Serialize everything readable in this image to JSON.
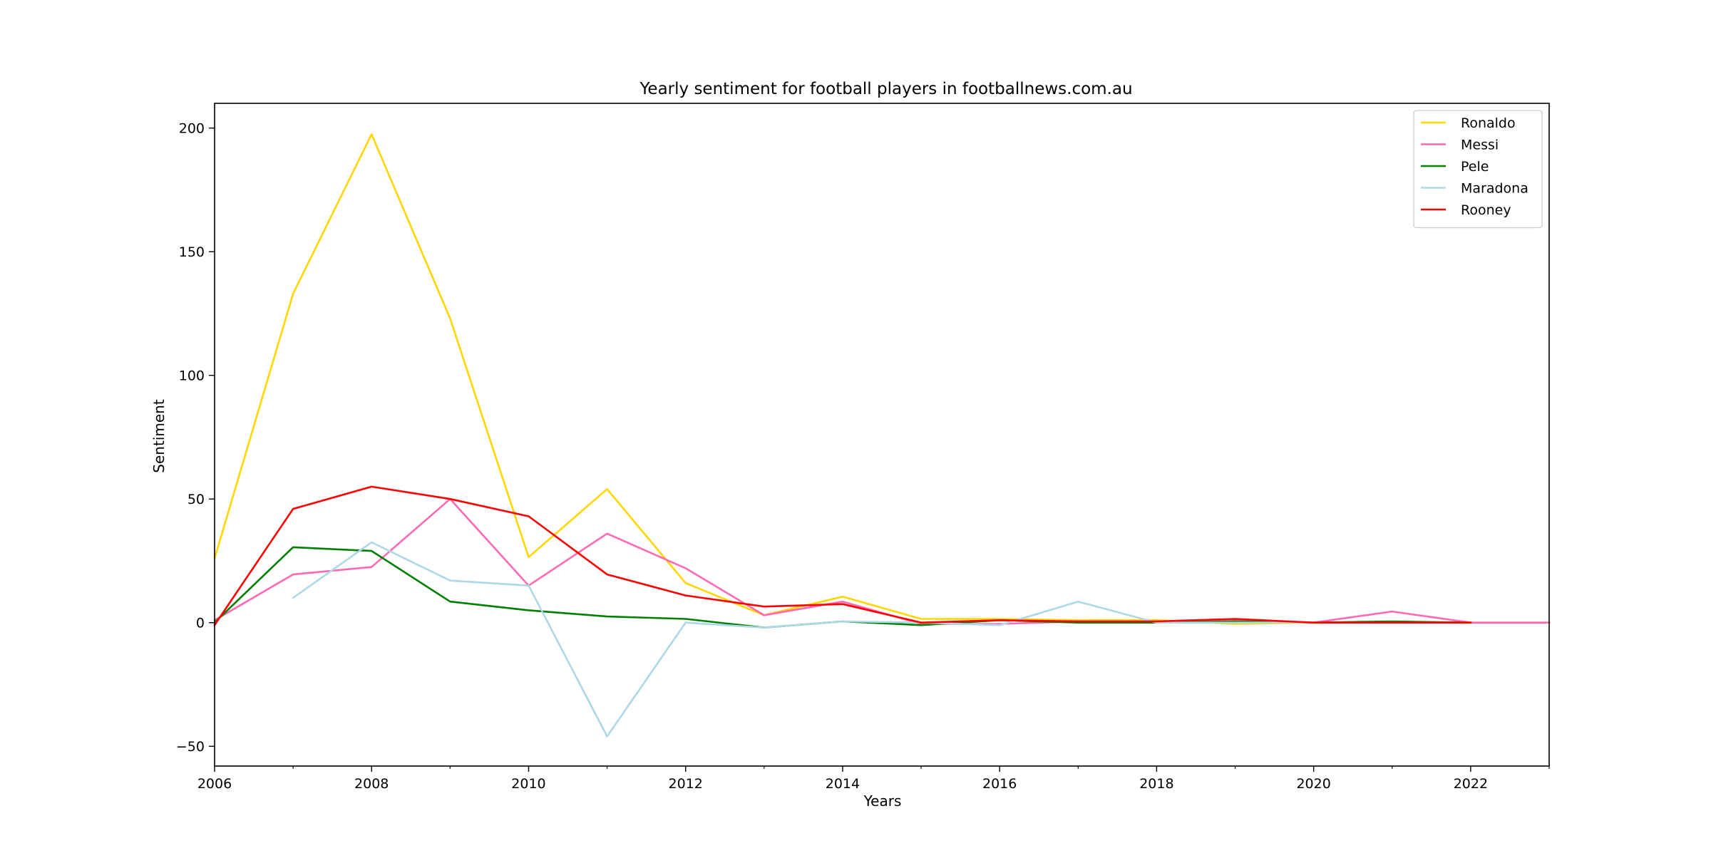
{
  "chart_data": {
    "type": "line",
    "title": "Yearly sentiment for football players in footballnews.com.au",
    "xlabel": "Years",
    "ylabel": "Sentiment",
    "xlim": [
      2006,
      2023
    ],
    "ylim": [
      -58,
      210
    ],
    "xticks": [
      2006,
      2008,
      2010,
      2012,
      2014,
      2016,
      2018,
      2020,
      2022
    ],
    "xticks_minor": [
      2007,
      2009,
      2011,
      2013,
      2015,
      2017,
      2019,
      2021,
      2023
    ],
    "yticks": [
      -50,
      0,
      50,
      100,
      150,
      200
    ],
    "ytick_labels": [
      "−50",
      "0",
      "50",
      "100",
      "150",
      "200"
    ],
    "grid": false,
    "legend_position": "top-right",
    "series": [
      {
        "name": "Ronaldo",
        "color": "#FFD700",
        "points": [
          [
            2006,
            26
          ],
          [
            2007,
            133
          ],
          [
            2008,
            197.5
          ],
          [
            2009,
            123
          ],
          [
            2010,
            26.5
          ],
          [
            2011,
            54
          ],
          [
            2012,
            16
          ],
          [
            2013,
            3
          ],
          [
            2014,
            10.5
          ],
          [
            2015,
            1.5
          ],
          [
            2016,
            1.5
          ],
          [
            2017,
            1
          ],
          [
            2018,
            1
          ],
          [
            2019,
            -0.5
          ],
          [
            2020,
            0
          ],
          [
            2021,
            0
          ],
          [
            2022,
            0
          ],
          [
            2023,
            0
          ]
        ]
      },
      {
        "name": "Messi",
        "color": "#FF69B4",
        "points": [
          [
            2006,
            1
          ],
          [
            2007,
            19.5
          ],
          [
            2008,
            22.5
          ],
          [
            2009,
            50
          ],
          [
            2010,
            15
          ],
          [
            2011,
            36
          ],
          [
            2012,
            22
          ],
          [
            2013,
            3
          ],
          [
            2014,
            8.5
          ],
          [
            2015,
            -0.5
          ],
          [
            2016,
            -0.5
          ],
          [
            2017,
            0.5
          ],
          [
            2018,
            0
          ],
          [
            2019,
            1
          ],
          [
            2020,
            0
          ],
          [
            2021,
            4.5
          ],
          [
            2022,
            0
          ],
          [
            2023,
            0
          ]
        ]
      },
      {
        "name": "Pele",
        "color": "#008000",
        "points": [
          [
            2006,
            0
          ],
          [
            2007,
            30.5
          ],
          [
            2008,
            29
          ],
          [
            2009,
            8.5
          ],
          [
            2010,
            5
          ],
          [
            2011,
            2.5
          ],
          [
            2012,
            1.5
          ],
          [
            2013,
            -2
          ],
          [
            2014,
            0.5
          ],
          [
            2015,
            -1
          ],
          [
            2016,
            1
          ],
          [
            2017,
            0
          ],
          [
            2018,
            0
          ],
          [
            2019,
            0.5
          ],
          [
            2020,
            0
          ],
          [
            2021,
            0.5
          ],
          [
            2022,
            0
          ]
        ]
      },
      {
        "name": "Maradona",
        "color": "#ADD8E6",
        "points": [
          [
            2007,
            10
          ],
          [
            2008,
            32.5
          ],
          [
            2009,
            17
          ],
          [
            2010,
            15
          ],
          [
            2011,
            -46
          ],
          [
            2012,
            0
          ],
          [
            2013,
            -2
          ],
          [
            2014,
            0.5
          ],
          [
            2015,
            0
          ],
          [
            2016,
            -1
          ],
          [
            2017,
            8.5
          ],
          [
            2018,
            0
          ],
          [
            2019,
            0
          ],
          [
            2020,
            0
          ]
        ]
      },
      {
        "name": "Rooney",
        "color": "#FF0000",
        "points": [
          [
            2006,
            -1
          ],
          [
            2007,
            46
          ],
          [
            2008,
            55
          ],
          [
            2009,
            50
          ],
          [
            2010,
            43
          ],
          [
            2011,
            19.5
          ],
          [
            2012,
            11
          ],
          [
            2013,
            6.5
          ],
          [
            2014,
            7.5
          ],
          [
            2015,
            0
          ],
          [
            2016,
            1
          ],
          [
            2017,
            0.5
          ],
          [
            2018,
            0.5
          ],
          [
            2019,
            1.5
          ],
          [
            2020,
            0
          ],
          [
            2021,
            0
          ],
          [
            2022,
            0
          ]
        ]
      }
    ]
  }
}
